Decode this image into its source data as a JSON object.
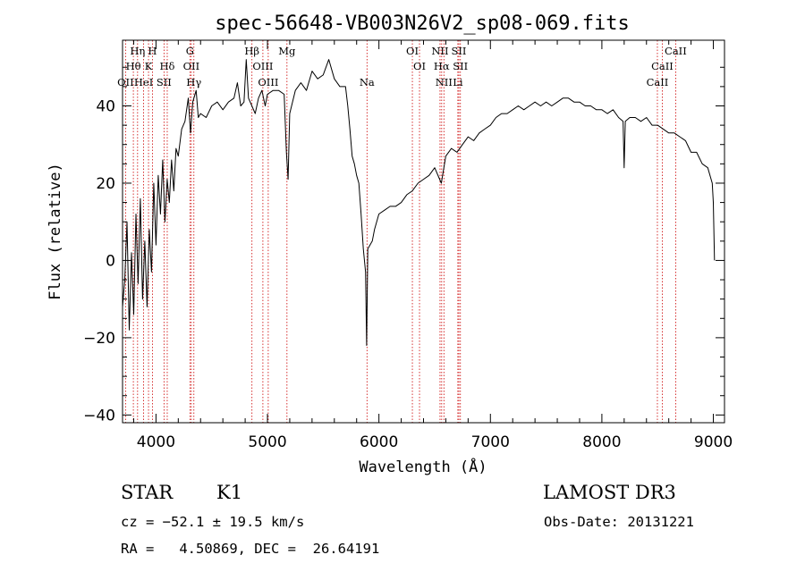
{
  "chart_data": {
    "type": "line",
    "title": "spec-56648-VB003N26V2_sp08-069.fits",
    "xlabel": "Wavelength (Å)",
    "ylabel": "Flux (relative)",
    "xlim": [
      3700,
      9100
    ],
    "ylim": [
      -42,
      57
    ],
    "x_ticks": [
      4000,
      5000,
      6000,
      7000,
      8000,
      9000
    ],
    "y_ticks": [
      -40,
      -20,
      0,
      20,
      40
    ],
    "line_color": "#000000",
    "marker_color": "#cc0000",
    "series": [
      {
        "points": [
          [
            3700,
            -12
          ],
          [
            3720,
            -5
          ],
          [
            3740,
            10
          ],
          [
            3760,
            -18
          ],
          [
            3780,
            2
          ],
          [
            3800,
            -14
          ],
          [
            3820,
            12
          ],
          [
            3840,
            -6
          ],
          [
            3860,
            16
          ],
          [
            3880,
            -10
          ],
          [
            3900,
            5
          ],
          [
            3920,
            -12
          ],
          [
            3940,
            8
          ],
          [
            3960,
            -3
          ],
          [
            3980,
            20
          ],
          [
            4000,
            4
          ],
          [
            4020,
            22
          ],
          [
            4040,
            12
          ],
          [
            4060,
            26
          ],
          [
            4080,
            10
          ],
          [
            4100,
            21
          ],
          [
            4120,
            15
          ],
          [
            4140,
            26
          ],
          [
            4160,
            18
          ],
          [
            4180,
            29
          ],
          [
            4200,
            27
          ],
          [
            4230,
            34
          ],
          [
            4260,
            36
          ],
          [
            4290,
            42
          ],
          [
            4310,
            33
          ],
          [
            4330,
            41
          ],
          [
            4360,
            44
          ],
          [
            4380,
            37
          ],
          [
            4400,
            38
          ],
          [
            4450,
            37
          ],
          [
            4500,
            40
          ],
          [
            4550,
            41
          ],
          [
            4600,
            39
          ],
          [
            4650,
            41
          ],
          [
            4700,
            42
          ],
          [
            4730,
            46
          ],
          [
            4760,
            40
          ],
          [
            4790,
            41
          ],
          [
            4810,
            52
          ],
          [
            4830,
            42
          ],
          [
            4860,
            40
          ],
          [
            4890,
            38
          ],
          [
            4920,
            42
          ],
          [
            4950,
            44
          ],
          [
            4980,
            40
          ],
          [
            5000,
            43
          ],
          [
            5050,
            44
          ],
          [
            5100,
            44
          ],
          [
            5150,
            43
          ],
          [
            5170,
            28
          ],
          [
            5185,
            21
          ],
          [
            5200,
            38
          ],
          [
            5250,
            44
          ],
          [
            5300,
            46
          ],
          [
            5350,
            44
          ],
          [
            5400,
            49
          ],
          [
            5450,
            47
          ],
          [
            5500,
            48
          ],
          [
            5550,
            52
          ],
          [
            5600,
            47
          ],
          [
            5650,
            45
          ],
          [
            5700,
            45
          ],
          [
            5720,
            40
          ],
          [
            5740,
            34
          ],
          [
            5760,
            27
          ],
          [
            5780,
            25
          ],
          [
            5800,
            22
          ],
          [
            5820,
            20
          ],
          [
            5840,
            12
          ],
          [
            5860,
            3
          ],
          [
            5880,
            -3
          ],
          [
            5890,
            -22
          ],
          [
            5900,
            3
          ],
          [
            5920,
            4
          ],
          [
            5940,
            5
          ],
          [
            5960,
            8
          ],
          [
            6000,
            12
          ],
          [
            6050,
            13
          ],
          [
            6100,
            14
          ],
          [
            6150,
            14
          ],
          [
            6200,
            15
          ],
          [
            6250,
            17
          ],
          [
            6300,
            18
          ],
          [
            6350,
            20
          ],
          [
            6400,
            21
          ],
          [
            6450,
            22
          ],
          [
            6500,
            24
          ],
          [
            6560,
            20
          ],
          [
            6600,
            27
          ],
          [
            6650,
            29
          ],
          [
            6700,
            28
          ],
          [
            6750,
            30
          ],
          [
            6800,
            32
          ],
          [
            6850,
            31
          ],
          [
            6900,
            33
          ],
          [
            6950,
            34
          ],
          [
            7000,
            35
          ],
          [
            7050,
            37
          ],
          [
            7100,
            38
          ],
          [
            7150,
            38
          ],
          [
            7200,
            39
          ],
          [
            7250,
            40
          ],
          [
            7300,
            39
          ],
          [
            7350,
            40
          ],
          [
            7400,
            41
          ],
          [
            7450,
            40
          ],
          [
            7500,
            41
          ],
          [
            7550,
            40
          ],
          [
            7600,
            41
          ],
          [
            7650,
            42
          ],
          [
            7700,
            42
          ],
          [
            7750,
            41
          ],
          [
            7800,
            41
          ],
          [
            7850,
            40
          ],
          [
            7900,
            40
          ],
          [
            7950,
            39
          ],
          [
            8000,
            39
          ],
          [
            8050,
            38
          ],
          [
            8100,
            39
          ],
          [
            8150,
            37
          ],
          [
            8190,
            36
          ],
          [
            8200,
            24
          ],
          [
            8210,
            36
          ],
          [
            8250,
            37
          ],
          [
            8300,
            37
          ],
          [
            8350,
            36
          ],
          [
            8400,
            37
          ],
          [
            8450,
            35
          ],
          [
            8500,
            35
          ],
          [
            8550,
            34
          ],
          [
            8600,
            33
          ],
          [
            8650,
            33
          ],
          [
            8700,
            32
          ],
          [
            8750,
            31
          ],
          [
            8800,
            28
          ],
          [
            8850,
            28
          ],
          [
            8900,
            25
          ],
          [
            8950,
            24
          ],
          [
            8990,
            20
          ],
          [
            9000,
            15
          ],
          [
            9010,
            0
          ]
        ]
      }
    ],
    "lines": [
      {
        "name": "Hη",
        "x": 3835,
        "row": 0
      },
      {
        "name": "H",
        "x": 3968,
        "row": 0
      },
      {
        "name": "Hθ",
        "x": 3797,
        "row": 1
      },
      {
        "name": "K",
        "x": 3933,
        "row": 1
      },
      {
        "name": "Hδ",
        "x": 4101,
        "row": 1
      },
      {
        "name": "OII",
        "x": 3727,
        "row": 2
      },
      {
        "name": "HeI",
        "x": 3889,
        "row": 2
      },
      {
        "name": "SII",
        "x": 4072,
        "row": 2
      },
      {
        "name": "G",
        "x": 4305,
        "row": 0
      },
      {
        "name": "OII",
        "x": 4317,
        "row": 1
      },
      {
        "name": "Hγ",
        "x": 4340,
        "row": 2
      },
      {
        "name": "Hβ",
        "x": 4861,
        "row": 0
      },
      {
        "name": "Mg",
        "x": 5175,
        "row": 0
      },
      {
        "name": "OIII",
        "x": 4959,
        "row": 1
      },
      {
        "name": "OIII",
        "x": 5007,
        "row": 2
      },
      {
        "name": "Na",
        "x": 5893,
        "row": 2
      },
      {
        "name": "OI",
        "x": 6300,
        "row": 0
      },
      {
        "name": "OI",
        "x": 6364,
        "row": 1
      },
      {
        "name": "NII",
        "x": 6548,
        "row": 0
      },
      {
        "name": "SII",
        "x": 6717,
        "row": 0
      },
      {
        "name": "Hα",
        "x": 6563,
        "row": 1
      },
      {
        "name": "SII",
        "x": 6731,
        "row": 1
      },
      {
        "name": "NII",
        "x": 6583,
        "row": 2
      },
      {
        "name": "Li",
        "x": 6708,
        "row": 2
      },
      {
        "name": "CaII",
        "x": 8662,
        "row": 0
      },
      {
        "name": "CaII",
        "x": 8542,
        "row": 1
      },
      {
        "name": "CaII",
        "x": 8498,
        "row": 2
      }
    ]
  },
  "info": {
    "object_type": "STAR",
    "subclass": "K1",
    "survey": "LAMOST DR3",
    "velocity": "cz = −52.1 ± 19.5 km/s",
    "obs_date": "Obs-Date: 20131221",
    "coords": "RA =   4.50869, DEC =  26.64191"
  }
}
